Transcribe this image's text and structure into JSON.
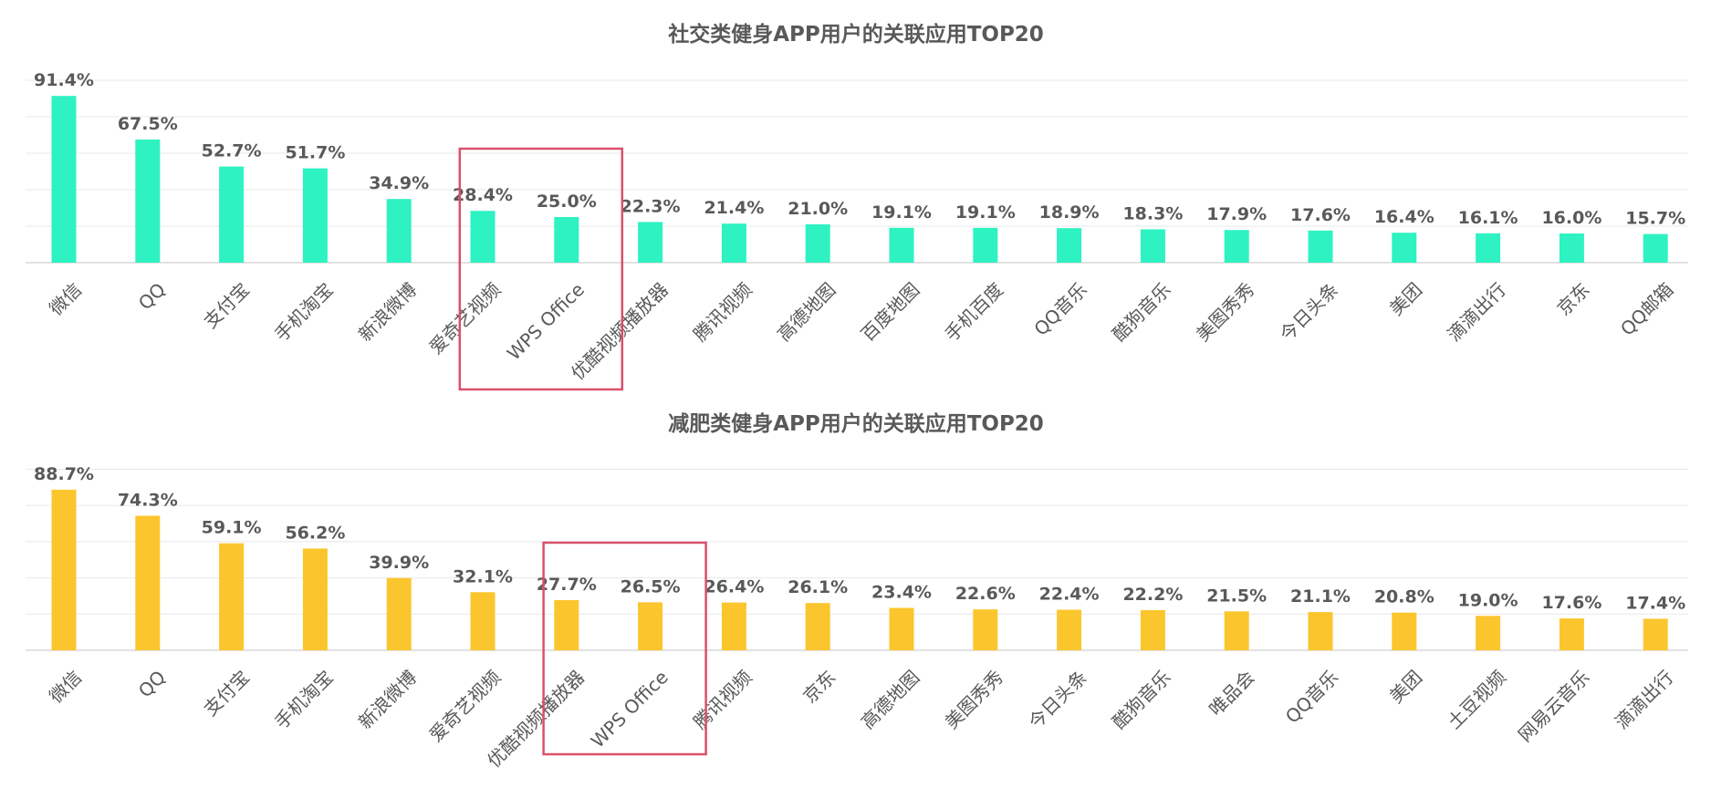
{
  "chart_data": [
    {
      "type": "bar",
      "title": "社交类健身APP用户的关联应用TOP20",
      "categories": [
        "微信",
        "QQ",
        "支付宝",
        "手机淘宝",
        "新浪微博",
        "爱奇艺视频",
        "WPS Office",
        "优酷视频播放器",
        "腾讯视频",
        "高德地图",
        "百度地图",
        "手机百度",
        "QQ音乐",
        "酷狗音乐",
        "美图秀秀",
        "今日头条",
        "美团",
        "滴滴出行",
        "京东",
        "QQ邮箱"
      ],
      "values": [
        91.4,
        67.5,
        52.7,
        51.7,
        34.9,
        28.4,
        25.0,
        22.3,
        21.4,
        21.0,
        19.1,
        19.1,
        18.9,
        18.3,
        17.9,
        17.6,
        16.4,
        16.1,
        16.0,
        15.7
      ],
      "value_labels": [
        "91.4%",
        "67.5%",
        "52.7%",
        "51.7%",
        "34.9%",
        "28.4%",
        "25.0%",
        "22.3%",
        "21.4%",
        "21.0%",
        "19.1%",
        "19.1%",
        "18.9%",
        "18.3%",
        "17.9%",
        "17.6%",
        "16.4%",
        "16.1%",
        "16.0%",
        "15.7%"
      ],
      "ylim": [
        0,
        100
      ],
      "grid": true,
      "bar_color": "#2ef2c2",
      "highlight_color": "#d9506a",
      "highlight_indices": [
        6
      ]
    },
    {
      "type": "bar",
      "title": "减肥类健身APP用户的关联应用TOP20",
      "categories": [
        "微信",
        "QQ",
        "支付宝",
        "手机淘宝",
        "新浪微博",
        "爱奇艺视频",
        "优酷视频播放器",
        "WPS Office",
        "腾讯视频",
        "京东",
        "高德地图",
        "美图秀秀",
        "今日头条",
        "酷狗音乐",
        "唯品会",
        "QQ音乐",
        "美团",
        "土豆视频",
        "网易云音乐",
        "滴滴出行"
      ],
      "values": [
        88.7,
        74.3,
        59.1,
        56.2,
        39.9,
        32.1,
        27.7,
        26.5,
        26.4,
        26.1,
        23.4,
        22.6,
        22.4,
        22.2,
        21.5,
        21.1,
        20.8,
        19.0,
        17.6,
        17.4
      ],
      "value_labels": [
        "88.7%",
        "74.3%",
        "59.1%",
        "56.2%",
        "39.9%",
        "32.1%",
        "27.7%",
        "26.5%",
        "26.4%",
        "26.1%",
        "23.4%",
        "22.6%",
        "22.4%",
        "22.2%",
        "21.5%",
        "21.1%",
        "20.8%",
        "19.0%",
        "17.6%",
        "17.4%"
      ],
      "ylim": [
        0,
        100
      ],
      "grid": true,
      "bar_color": "#fbc62d",
      "highlight_color": "#d9506a",
      "highlight_indices": [
        7
      ]
    }
  ]
}
